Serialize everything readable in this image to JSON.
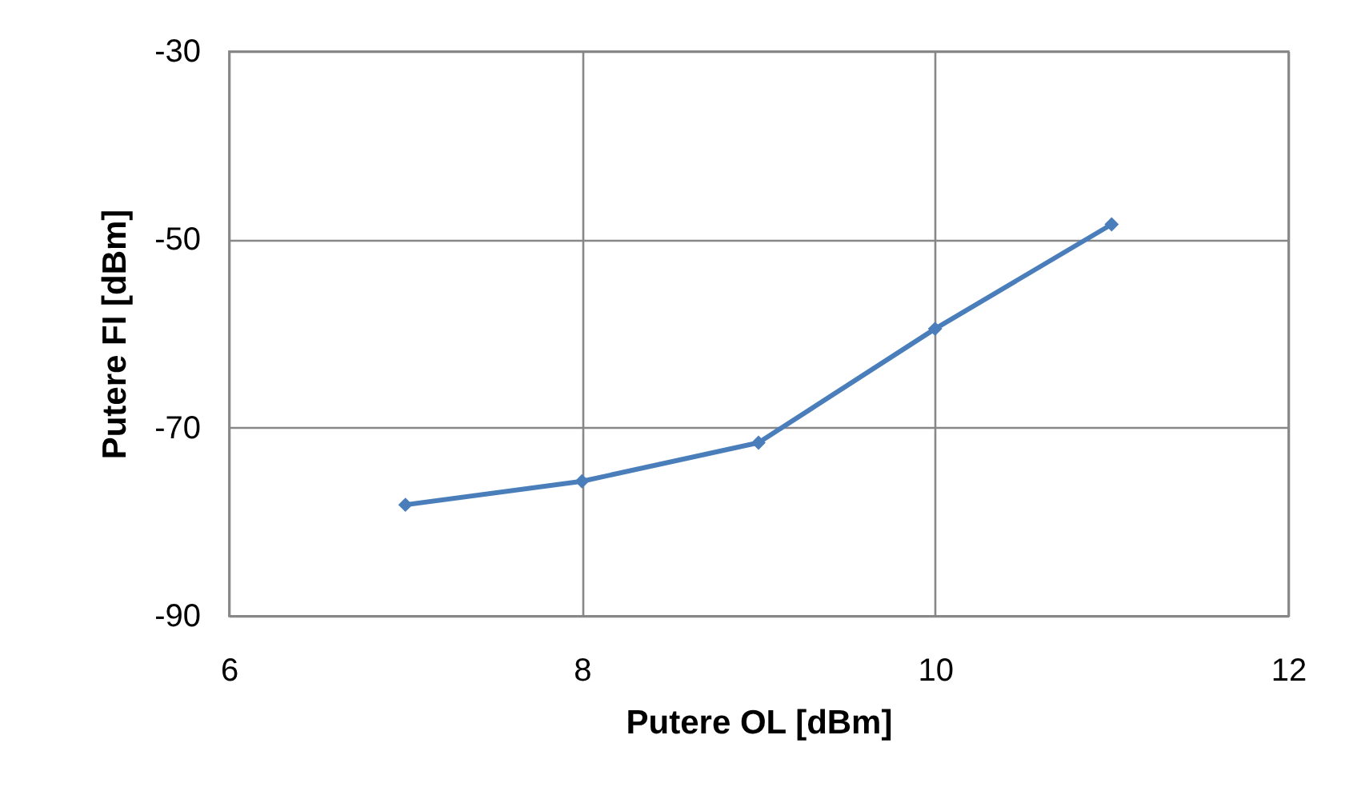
{
  "chart_data": {
    "type": "line",
    "xlabel": "Putere OL [dBm]",
    "ylabel": "Putere FI [dBm]",
    "x": [
      7,
      8,
      9,
      10,
      11
    ],
    "series": [
      {
        "color": "#4a7ebb",
        "values": [
          -78.2,
          -75.7,
          -71.6,
          -59.5,
          -48.4
        ]
      }
    ],
    "xlim": [
      6,
      12
    ],
    "ylim": [
      -90,
      -30
    ],
    "xticks": [
      6,
      8,
      10,
      12
    ],
    "yticks": [
      -90,
      -70,
      -50,
      -30
    ],
    "grid": true,
    "marker": "diamond",
    "line_style": "solid"
  }
}
